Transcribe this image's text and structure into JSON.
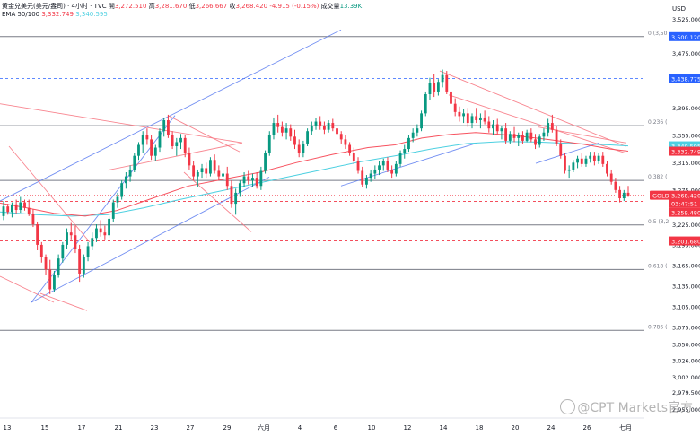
{
  "header": {
    "title": "黄金兑美元(美元/盎司) · 4小时 · TVC",
    "open_label": "開",
    "open": "3,272.510",
    "high_label": "高",
    "high": "3,281.670",
    "low_label": "低",
    "low": "3,266.667",
    "close_label": "收",
    "close": "3,268.420",
    "change": "-4.915 (-0.15%)",
    "volume_label": "成交量",
    "volume": "13.39K",
    "ema_label": "EMA 50/100",
    "ema_50": "3,332.749",
    "ema_100": "3,340.595"
  },
  "currency": "USD",
  "watermark": "@CPT Markets官方",
  "colors": {
    "up": "#089981",
    "down": "#f23645",
    "ema50": "#f7525f",
    "ema100": "#4dd0e1",
    "trendline_blue": "#5b7cf0",
    "trendline_red": "#f7707c",
    "fib": "#787b86"
  },
  "chart_data": {
    "type": "candlestick",
    "symbol": "GOLD",
    "timeframe": "4H",
    "x_ticks": [
      "13",
      "15",
      "17",
      "21",
      "23",
      "27",
      "29",
      "六月",
      "4",
      "6",
      "10",
      "12",
      "14",
      "18",
      "20",
      "24",
      "26",
      "七月"
    ],
    "y_ticks": [
      "3,525.000",
      "3,475.000",
      "3,395.000",
      "3,355.000",
      "3,315.000",
      "3,275.000",
      "3,225.000",
      "3,195.000",
      "3,165.000",
      "3,135.000",
      "3,105.000",
      "3,075.000",
      "3,050.000",
      "3,026.000",
      "3,002.000",
      "2,979.500",
      "2,955.000"
    ],
    "y_range": [
      2943,
      3530
    ],
    "price_labels": [
      {
        "text": "3,500.120",
        "value": 3500.12,
        "color": "#2962ff"
      },
      {
        "text": "3,438.775",
        "value": 3438.775,
        "color": "#2962ff"
      },
      {
        "text": "3,340.595",
        "value": 3340.595,
        "color": "#4dd0e1"
      },
      {
        "text": "3,332.749",
        "value": 3332.749,
        "color": "#f23645"
      },
      {
        "text": "GOLD",
        "value": 3268.42,
        "color": "#f23645"
      },
      {
        "text": "3,268.420",
        "value": 3268.42,
        "color": "#f23645"
      },
      {
        "text": "03:47:51",
        "value": 3268.42,
        "color": "#f23645"
      },
      {
        "text": "3,259.480",
        "value": 3259.48,
        "color": "#f23645"
      },
      {
        "text": "3,201.680",
        "value": 3201.68,
        "color": "#f23645"
      }
    ],
    "fib_levels": [
      {
        "label": "0 (3,50",
        "value": 3500.12
      },
      {
        "label": "0.236 (",
        "value": 3370
      },
      {
        "label": "0.382 (",
        "value": 3290
      },
      {
        "label": "0.5 (3,2",
        "value": 3225
      },
      {
        "label": "0.618 (",
        "value": 3160
      },
      {
        "label": "0.786 (",
        "value": 3071
      }
    ],
    "dashed_levels": [
      {
        "value": 3438.775,
        "color": "#2962ff"
      },
      {
        "value": 3259.48,
        "color": "#f23645"
      },
      {
        "value": 3201.68,
        "color": "#f23645"
      }
    ],
    "ema50": [
      [
        0,
        3257
      ],
      [
        30,
        3250
      ],
      [
        60,
        3242
      ],
      [
        95,
        3238
      ],
      [
        130,
        3246
      ],
      [
        170,
        3264
      ],
      [
        210,
        3282
      ],
      [
        250,
        3292
      ],
      [
        290,
        3302
      ],
      [
        330,
        3316
      ],
      [
        370,
        3328
      ],
      [
        410,
        3338
      ],
      [
        440,
        3342
      ],
      [
        470,
        3352
      ],
      [
        500,
        3357
      ],
      [
        530,
        3360
      ],
      [
        570,
        3356
      ],
      [
        610,
        3350
      ],
      [
        650,
        3343
      ],
      [
        680,
        3336
      ],
      [
        700,
        3332.749
      ]
    ],
    "ema100": [
      [
        0,
        3244
      ],
      [
        40,
        3240
      ],
      [
        80,
        3238
      ],
      [
        120,
        3240
      ],
      [
        160,
        3250
      ],
      [
        200,
        3262
      ],
      [
        240,
        3273
      ],
      [
        280,
        3284
      ],
      [
        320,
        3295
      ],
      [
        360,
        3306
      ],
      [
        400,
        3317
      ],
      [
        440,
        3326
      ],
      [
        480,
        3336
      ],
      [
        520,
        3344
      ],
      [
        560,
        3347
      ],
      [
        600,
        3346
      ],
      [
        640,
        3344
      ],
      [
        680,
        3342
      ],
      [
        700,
        3340.595
      ]
    ],
    "trendlines": [
      {
        "p1": [
          0,
          3260
        ],
        "p2": [
          380,
          3510
        ],
        "color": "blue"
      },
      {
        "p1": [
          35,
          3112
        ],
        "p2": [
          195,
          3385
        ],
        "color": "blue"
      },
      {
        "p1": [
          35,
          3112
        ],
        "p2": [
          300,
          3295
        ],
        "color": "blue"
      },
      {
        "p1": [
          380,
          3282
        ],
        "p2": [
          532,
          3345
        ],
        "color": "blue"
      },
      {
        "p1": [
          597,
          3315
        ],
        "p2": [
          668,
          3345
        ],
        "color": "blue"
      },
      {
        "p1": [
          0,
          3402
        ],
        "p2": [
          270,
          3345
        ],
        "color": "red"
      },
      {
        "p1": [
          120,
          3305
        ],
        "p2": [
          270,
          3345
        ],
        "color": "red"
      },
      {
        "p1": [
          187,
          3385
        ],
        "p2": [
          267,
          3332
        ],
        "color": "red"
      },
      {
        "p1": [
          205,
          3302
        ],
        "p2": [
          280,
          3215
        ],
        "color": "red"
      },
      {
        "p1": [
          490,
          3450
        ],
        "p2": [
          697,
          3340
        ],
        "color": "red"
      },
      {
        "p1": [
          500,
          3415
        ],
        "p2": [
          697,
          3330
        ],
        "color": "red"
      },
      {
        "p1": [
          600,
          3368
        ],
        "p2": [
          697,
          3345
        ],
        "color": "red"
      },
      {
        "p1": [
          10,
          3340
        ],
        "p2": [
          100,
          3200
        ],
        "color": "red"
      },
      {
        "p1": [
          0,
          3150
        ],
        "p2": [
          60,
          3112
        ],
        "color": "red"
      },
      {
        "p1": [
          45,
          3125
        ],
        "p2": [
          97,
          3100
        ],
        "color": "red"
      }
    ],
    "candles": [
      [
        3238,
        3260,
        3232,
        3252
      ],
      [
        3252,
        3256,
        3240,
        3244
      ],
      [
        3244,
        3258,
        3236,
        3255
      ],
      [
        3255,
        3262,
        3242,
        3247
      ],
      [
        3247,
        3266,
        3243,
        3258
      ],
      [
        3258,
        3262,
        3246,
        3250
      ],
      [
        3250,
        3262,
        3238,
        3241
      ],
      [
        3241,
        3248,
        3222,
        3226
      ],
      [
        3226,
        3230,
        3188,
        3196
      ],
      [
        3196,
        3200,
        3170,
        3178
      ],
      [
        3178,
        3182,
        3152,
        3160
      ],
      [
        3160,
        3174,
        3124,
        3131
      ],
      [
        3131,
        3158,
        3127,
        3152
      ],
      [
        3152,
        3182,
        3148,
        3176
      ],
      [
        3176,
        3200,
        3170,
        3196
      ],
      [
        3196,
        3220,
        3190,
        3214
      ],
      [
        3214,
        3228,
        3204,
        3210
      ],
      [
        3210,
        3224,
        3184,
        3190
      ],
      [
        3190,
        3196,
        3142,
        3154
      ],
      [
        3154,
        3182,
        3148,
        3178
      ],
      [
        3178,
        3200,
        3172,
        3194
      ],
      [
        3194,
        3214,
        3188,
        3206
      ],
      [
        3206,
        3226,
        3200,
        3220
      ],
      [
        3220,
        3232,
        3208,
        3214
      ],
      [
        3214,
        3224,
        3204,
        3210
      ],
      [
        3210,
        3238,
        3206,
        3234
      ],
      [
        3234,
        3262,
        3230,
        3258
      ],
      [
        3258,
        3272,
        3250,
        3266
      ],
      [
        3266,
        3290,
        3262,
        3286
      ],
      [
        3286,
        3302,
        3278,
        3296
      ],
      [
        3296,
        3312,
        3288,
        3306
      ],
      [
        3306,
        3330,
        3302,
        3326
      ],
      [
        3326,
        3346,
        3320,
        3342
      ],
      [
        3342,
        3362,
        3330,
        3356
      ],
      [
        3356,
        3366,
        3342,
        3350
      ],
      [
        3350,
        3356,
        3320,
        3326
      ],
      [
        3326,
        3342,
        3318,
        3338
      ],
      [
        3338,
        3366,
        3332,
        3362
      ],
      [
        3362,
        3382,
        3354,
        3378
      ],
      [
        3378,
        3386,
        3352,
        3356
      ],
      [
        3356,
        3362,
        3336,
        3340
      ],
      [
        3340,
        3352,
        3326,
        3346
      ],
      [
        3346,
        3358,
        3336,
        3352
      ],
      [
        3352,
        3356,
        3324,
        3330
      ],
      [
        3330,
        3338,
        3306,
        3312
      ],
      [
        3312,
        3318,
        3290,
        3296
      ],
      [
        3296,
        3306,
        3280,
        3302
      ],
      [
        3302,
        3314,
        3294,
        3308
      ],
      [
        3308,
        3316,
        3294,
        3300
      ],
      [
        3300,
        3324,
        3296,
        3320
      ],
      [
        3320,
        3328,
        3300,
        3304
      ],
      [
        3304,
        3312,
        3290,
        3296
      ],
      [
        3296,
        3306,
        3288,
        3300
      ],
      [
        3300,
        3310,
        3276,
        3282
      ],
      [
        3282,
        3290,
        3250,
        3256
      ],
      [
        3256,
        3278,
        3240,
        3272
      ],
      [
        3272,
        3290,
        3266,
        3286
      ],
      [
        3286,
        3302,
        3280,
        3296
      ],
      [
        3296,
        3304,
        3284,
        3290
      ],
      [
        3290,
        3300,
        3280,
        3294
      ],
      [
        3294,
        3302,
        3278,
        3282
      ],
      [
        3282,
        3310,
        3276,
        3304
      ],
      [
        3304,
        3334,
        3300,
        3330
      ],
      [
        3330,
        3362,
        3326,
        3356
      ],
      [
        3356,
        3382,
        3350,
        3374
      ],
      [
        3374,
        3386,
        3360,
        3368
      ],
      [
        3368,
        3376,
        3354,
        3360
      ],
      [
        3360,
        3374,
        3350,
        3366
      ],
      [
        3366,
        3372,
        3348,
        3354
      ],
      [
        3354,
        3364,
        3336,
        3342
      ],
      [
        3342,
        3350,
        3324,
        3330
      ],
      [
        3330,
        3348,
        3324,
        3344
      ],
      [
        3344,
        3366,
        3340,
        3362
      ],
      [
        3362,
        3376,
        3356,
        3370
      ],
      [
        3370,
        3382,
        3364,
        3376
      ],
      [
        3376,
        3384,
        3364,
        3370
      ],
      [
        3370,
        3376,
        3358,
        3364
      ],
      [
        3364,
        3378,
        3360,
        3374
      ],
      [
        3374,
        3380,
        3362,
        3366
      ],
      [
        3366,
        3370,
        3352,
        3358
      ],
      [
        3358,
        3362,
        3344,
        3350
      ],
      [
        3350,
        3356,
        3336,
        3342
      ],
      [
        3342,
        3346,
        3326,
        3330
      ],
      [
        3330,
        3338,
        3314,
        3318
      ],
      [
        3318,
        3324,
        3300,
        3304
      ],
      [
        3304,
        3310,
        3280,
        3284
      ],
      [
        3284,
        3298,
        3278,
        3294
      ],
      [
        3294,
        3306,
        3288,
        3300
      ],
      [
        3300,
        3312,
        3292,
        3306
      ],
      [
        3306,
        3318,
        3298,
        3312
      ],
      [
        3312,
        3322,
        3304,
        3318
      ],
      [
        3318,
        3324,
        3302,
        3306
      ],
      [
        3306,
        3312,
        3294,
        3300
      ],
      [
        3300,
        3318,
        3296,
        3314
      ],
      [
        3314,
        3334,
        3310,
        3330
      ],
      [
        3330,
        3342,
        3322,
        3336
      ],
      [
        3336,
        3356,
        3332,
        3352
      ],
      [
        3352,
        3366,
        3346,
        3360
      ],
      [
        3360,
        3372,
        3354,
        3366
      ],
      [
        3366,
        3392,
        3362,
        3388
      ],
      [
        3388,
        3420,
        3384,
        3416
      ],
      [
        3416,
        3440,
        3408,
        3432
      ],
      [
        3432,
        3446,
        3412,
        3420
      ],
      [
        3420,
        3438,
        3414,
        3434
      ],
      [
        3434,
        3452,
        3426,
        3444
      ],
      [
        3444,
        3450,
        3416,
        3420
      ],
      [
        3420,
        3426,
        3396,
        3402
      ],
      [
        3402,
        3410,
        3384,
        3390
      ],
      [
        3390,
        3398,
        3376,
        3384
      ],
      [
        3384,
        3394,
        3374,
        3388
      ],
      [
        3388,
        3396,
        3368,
        3374
      ],
      [
        3374,
        3388,
        3366,
        3384
      ],
      [
        3384,
        3396,
        3374,
        3378
      ],
      [
        3378,
        3388,
        3366,
        3382
      ],
      [
        3382,
        3392,
        3372,
        3376
      ],
      [
        3376,
        3384,
        3360,
        3366
      ],
      [
        3366,
        3378,
        3356,
        3372
      ],
      [
        3372,
        3380,
        3358,
        3362
      ],
      [
        3362,
        3370,
        3350,
        3366
      ],
      [
        3366,
        3374,
        3344,
        3348
      ],
      [
        3348,
        3362,
        3344,
        3358
      ],
      [
        3358,
        3368,
        3346,
        3352
      ],
      [
        3352,
        3360,
        3340,
        3356
      ],
      [
        3356,
        3362,
        3344,
        3348
      ],
      [
        3348,
        3364,
        3346,
        3360
      ],
      [
        3360,
        3366,
        3346,
        3350
      ],
      [
        3350,
        3358,
        3336,
        3342
      ],
      [
        3342,
        3358,
        3338,
        3354
      ],
      [
        3354,
        3366,
        3348,
        3360
      ],
      [
        3360,
        3380,
        3354,
        3374
      ],
      [
        3374,
        3386,
        3360,
        3364
      ],
      [
        3364,
        3370,
        3340,
        3344
      ],
      [
        3344,
        3350,
        3322,
        3326
      ],
      [
        3326,
        3330,
        3300,
        3304
      ],
      [
        3304,
        3312,
        3294,
        3306
      ],
      [
        3306,
        3320,
        3302,
        3316
      ],
      [
        3316,
        3326,
        3308,
        3322
      ],
      [
        3322,
        3330,
        3310,
        3314
      ],
      [
        3314,
        3326,
        3310,
        3322
      ],
      [
        3322,
        3332,
        3316,
        3326
      ],
      [
        3326,
        3332,
        3312,
        3318
      ],
      [
        3318,
        3330,
        3314,
        3326
      ],
      [
        3326,
        3332,
        3310,
        3314
      ],
      [
        3314,
        3318,
        3296,
        3300
      ],
      [
        3300,
        3306,
        3284,
        3288
      ],
      [
        3288,
        3294,
        3272,
        3276
      ],
      [
        3276,
        3282,
        3258,
        3264
      ],
      [
        3264,
        3276,
        3260,
        3272
      ],
      [
        3272,
        3282,
        3266,
        3268
      ]
    ]
  }
}
